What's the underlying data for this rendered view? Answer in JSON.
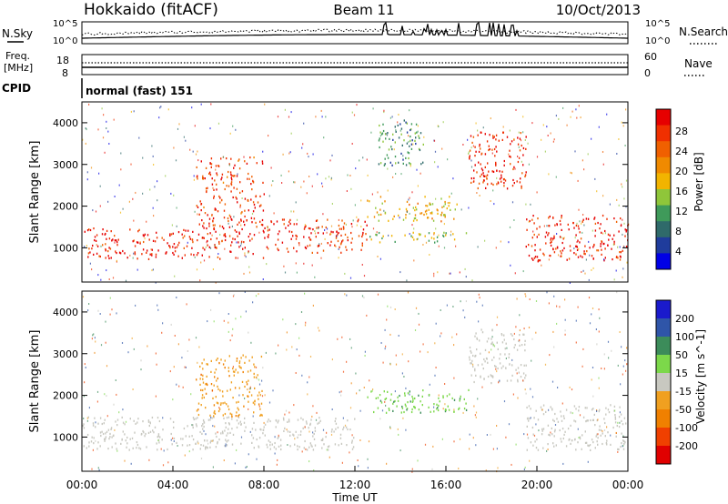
{
  "header": {
    "station": "Hokkaido (fitACF)",
    "beam": "Beam 11",
    "date": "10/Oct/2013"
  },
  "param_panels": {
    "nsky_label": "N.Sky",
    "nsky_scale_top": "10^5",
    "nsky_scale_bottom": "10^0",
    "nsearch_label": "N.Search",
    "freq_label_1": "Freq.",
    "freq_label_2": "[MHz]",
    "freq_ticks": [
      "18",
      "8"
    ],
    "nave_label": "Nave",
    "nave_ticks": [
      "60",
      "0"
    ],
    "cpid_label": "CPID",
    "cpid_value": "normal (fast) 151"
  },
  "colors": {
    "power_scale": [
      "#0000e6",
      "#1f3c9c",
      "#2f6a6a",
      "#3f9a5a",
      "#8fc63a",
      "#f2b400",
      "#f08a00",
      "#f06000",
      "#f03000",
      "#e60000"
    ],
    "velocity_scale": [
      "#1a1acc",
      "#2f55a8",
      "#3c8c5a",
      "#7cd84a",
      "#c8c8c0",
      "#f0a020",
      "#f08000",
      "#f04000",
      "#e00000"
    ],
    "ground_scatter": "#c8c8c0"
  },
  "chart_data": [
    {
      "type": "heatmap",
      "panel": "power",
      "ylabel": "Slant Range [km]",
      "yticks": [
        "1000",
        "2000",
        "3000",
        "4000"
      ],
      "ylim": [
        180,
        4500
      ],
      "xlim": [
        0,
        24
      ],
      "colorbar_label": "Power [dB]",
      "colorbar_ticks": [
        "4",
        "8",
        "12",
        "16",
        "20",
        "24",
        "28"
      ],
      "colorbar_range": [
        0,
        32
      ],
      "regions": [
        {
          "t0": 0,
          "t1": 8,
          "r0": 750,
          "r1": 1500,
          "value": 29
        },
        {
          "t0": 8,
          "t1": 12.5,
          "r0": 900,
          "r1": 1700,
          "value": 28
        },
        {
          "t0": 12.5,
          "t1": 16.5,
          "r0": 1650,
          "r1": 2250,
          "value": 18
        },
        {
          "t0": 12.5,
          "t1": 17,
          "r0": 1150,
          "r1": 1400,
          "value": 14
        },
        {
          "t0": 17,
          "t1": 19.5,
          "r0": 2400,
          "r1": 3800,
          "value": 28
        },
        {
          "t0": 19.5,
          "t1": 24,
          "r0": 700,
          "r1": 1800,
          "value": 29
        },
        {
          "t0": 5,
          "t1": 8,
          "r0": 1500,
          "r1": 3200,
          "value": 27
        },
        {
          "t0": 13,
          "t1": 15,
          "r0": 3000,
          "r1": 4100,
          "value": 10
        }
      ]
    },
    {
      "type": "heatmap",
      "panel": "velocity",
      "ylabel": "Slant Range [km]",
      "yticks": [
        "1000",
        "2000",
        "3000",
        "4000"
      ],
      "ylim": [
        180,
        4500
      ],
      "xlim": [
        0,
        24
      ],
      "colorbar_label": "Velocity [m s^-1]",
      "colorbar_ticks": [
        "200",
        "100",
        "50",
        "15",
        "-15",
        "-50",
        "-100",
        "-200"
      ],
      "xticks": [
        "00:00",
        "04:00",
        "08:00",
        "12:00",
        "16:00",
        "20:00",
        "00:00"
      ],
      "xlabel": "Time UT",
      "regions": [
        {
          "t0": 0,
          "t1": 12,
          "r0": 700,
          "r1": 1500,
          "value": 0
        },
        {
          "t0": 12.5,
          "t1": 17,
          "r0": 1600,
          "r1": 2150,
          "value": 40
        },
        {
          "t0": 17,
          "t1": 19.5,
          "r0": 2300,
          "r1": 3600,
          "value": 0
        },
        {
          "t0": 19.5,
          "t1": 24,
          "r0": 700,
          "r1": 1800,
          "value": 0
        },
        {
          "t0": 5,
          "t1": 8,
          "r0": 1500,
          "r1": 3000,
          "value": -40
        }
      ]
    }
  ]
}
